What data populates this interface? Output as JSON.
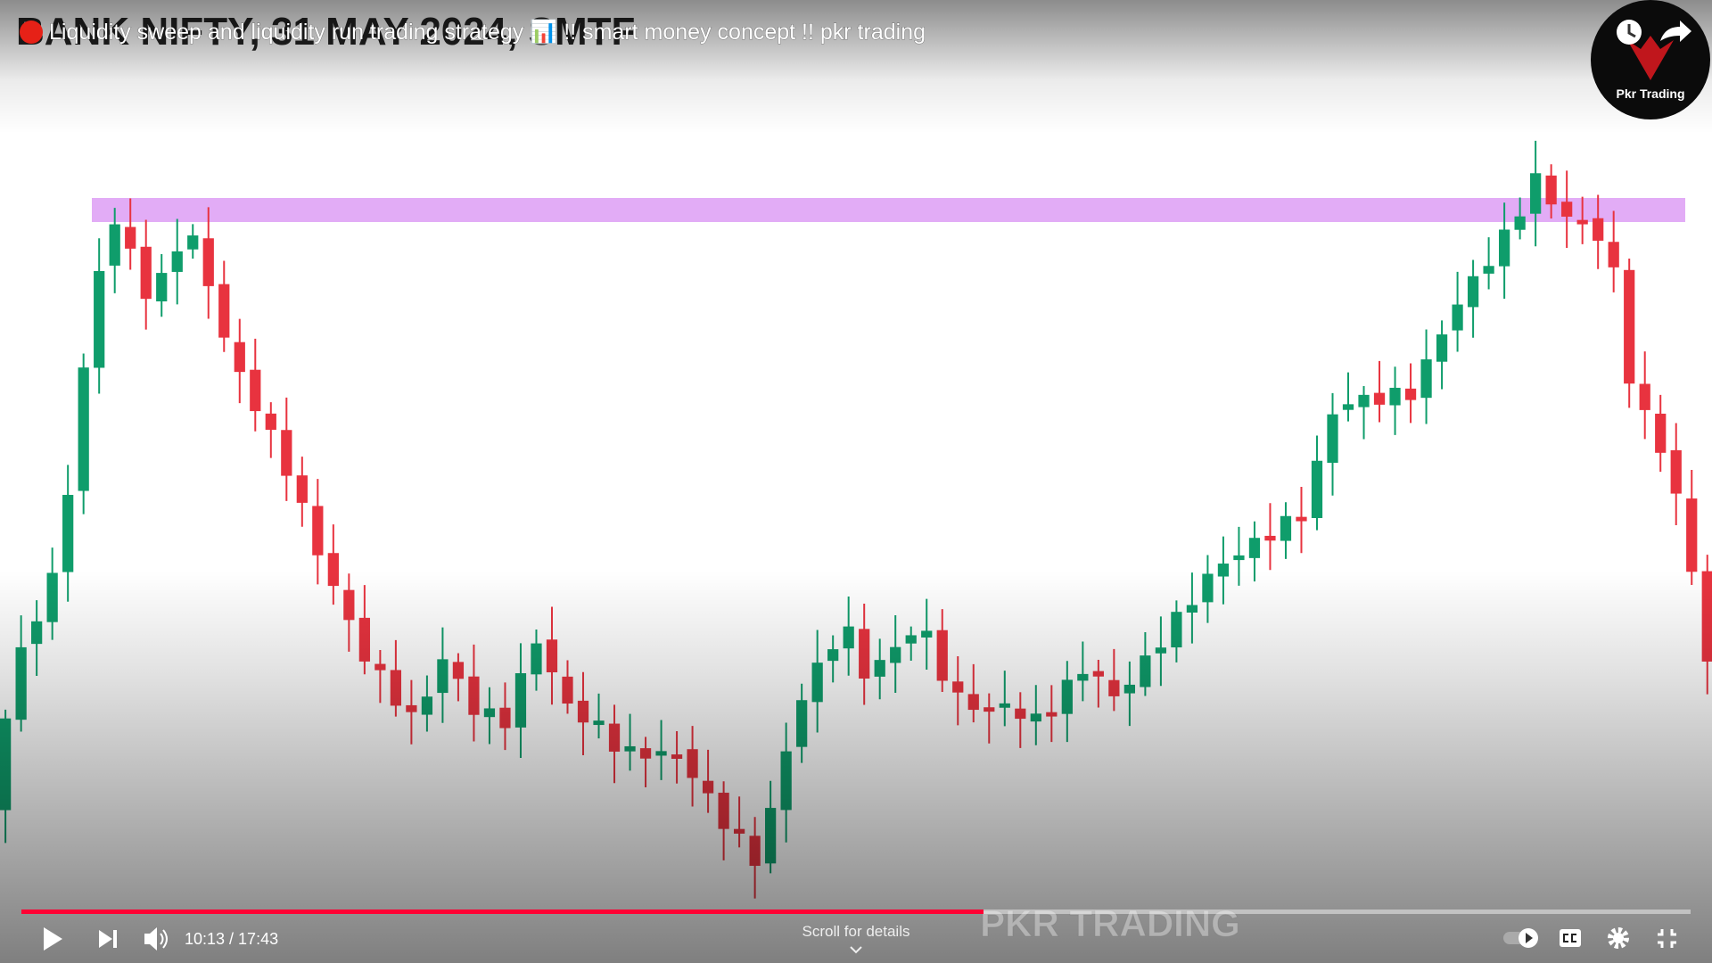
{
  "video": {
    "title": "Liquidity sweep and liquidity run trading strategy 📊 !! smart money concept !! pkr trading",
    "background_text": "BANK NIFTY, 31 MAY 2024, SMTF",
    "channel_logo_text": "Pkr Trading",
    "watermark": "PKR TRADING",
    "time": "10:13 / 17:43",
    "scroll_hint": "Scroll for details"
  }
}
